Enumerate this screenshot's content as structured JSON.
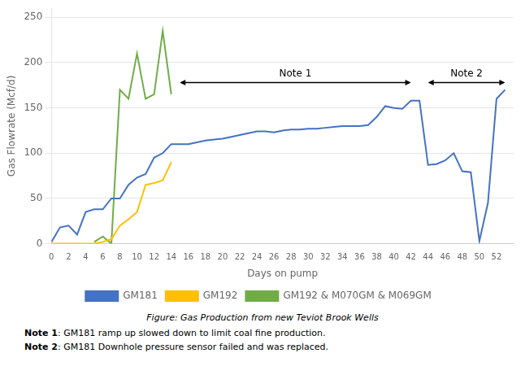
{
  "chart_data": {
    "type": "line",
    "xlabel": "Days on pump",
    "ylabel": "Gas Flowrate (Mcf/d)",
    "caption": "Figure: Gas Production from new Teviot Brook Wells",
    "series": [
      {
        "name": "GM181",
        "color": "#4472C4",
        "x": [
          0,
          1,
          2,
          3,
          4,
          5,
          6,
          7,
          8,
          9,
          10,
          11,
          12,
          13,
          14,
          15,
          16,
          17,
          18,
          19,
          20,
          21,
          22,
          23,
          24,
          25,
          26,
          27,
          28,
          29,
          30,
          31,
          32,
          33,
          34,
          35,
          36,
          37,
          38,
          39,
          40,
          41,
          42,
          43,
          44,
          45,
          46,
          47,
          48,
          49,
          50,
          51,
          52,
          53
        ],
        "values": [
          2,
          18,
          20,
          10,
          35,
          38,
          38,
          50,
          50,
          65,
          73,
          77,
          95,
          100,
          110,
          110,
          110,
          112,
          114,
          115,
          116,
          118,
          120,
          122,
          124,
          124,
          123,
          125,
          126,
          126,
          127,
          127,
          128,
          129,
          130,
          130,
          130,
          131,
          140,
          152,
          150,
          149,
          158,
          158,
          87,
          88,
          92,
          100,
          80,
          79,
          3,
          45,
          160,
          170
        ]
      },
      {
        "name": "GM192",
        "color": "#FFC000",
        "x": [
          0,
          1,
          2,
          3,
          4,
          5,
          6,
          7,
          8,
          9,
          10,
          11,
          12,
          13,
          14
        ],
        "values": [
          0,
          0,
          0,
          0,
          0,
          0,
          2,
          5,
          20,
          27,
          35,
          65,
          67,
          70,
          90
        ]
      },
      {
        "name": "GM192 & M070GM & M069GM",
        "color": "#70AD47",
        "x": [
          5,
          6,
          7,
          8,
          9,
          10,
          11,
          12,
          13,
          14
        ],
        "values": [
          2,
          8,
          0,
          170,
          160,
          210,
          160,
          165,
          235,
          165
        ]
      }
    ],
    "annotations": [
      {
        "text": "Note 1",
        "x_start": 15,
        "x_end": 42,
        "y": 178
      },
      {
        "text": "Note 2",
        "x_start": 44,
        "x_end": 53,
        "y": 178
      }
    ],
    "footnotes": [
      {
        "bold": "Note 1",
        "text": ": GM181 ramp up slowed down to limit coal fine production."
      },
      {
        "bold": "Note 2",
        "text": ": GM181 Downhole pressure sensor failed and was replaced."
      }
    ],
    "xlim": [
      0,
      54
    ],
    "ylim": [
      0,
      260
    ],
    "xticks": [
      0,
      2,
      4,
      6,
      8,
      10,
      12,
      14,
      16,
      18,
      20,
      22,
      24,
      26,
      28,
      30,
      32,
      34,
      36,
      38,
      40,
      42,
      44,
      46,
      48,
      50,
      52
    ],
    "yticks": [
      0,
      50,
      100,
      150,
      200,
      250
    ],
    "grid": "y",
    "legend": "bottom"
  }
}
